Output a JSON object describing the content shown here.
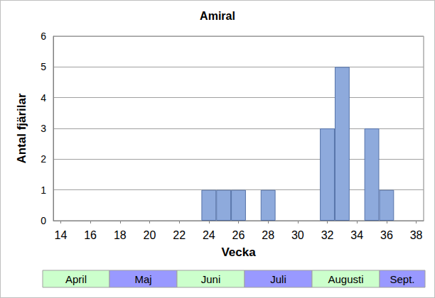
{
  "chart_data": {
    "type": "bar",
    "title": "Amiral",
    "x": [
      24,
      25,
      26,
      28,
      32,
      33,
      35,
      36
    ],
    "values": [
      1,
      1,
      1,
      1,
      3,
      5,
      3,
      1
    ],
    "color": "#8eaadc",
    "xlabel": "Vecka",
    "ylabel": "Antal fjärilar",
    "xlim": [
      13.5,
      38.5
    ],
    "xticks": [
      14,
      16,
      18,
      20,
      22,
      24,
      26,
      28,
      30,
      32,
      34,
      36,
      38
    ],
    "ylim": [
      0,
      6
    ],
    "yticks": [
      0,
      1,
      2,
      3,
      4,
      5,
      6
    ],
    "grid": true,
    "annotations": [
      "April",
      "Maj",
      "Juni",
      "Juli",
      "Augusti",
      "Sept."
    ]
  }
}
